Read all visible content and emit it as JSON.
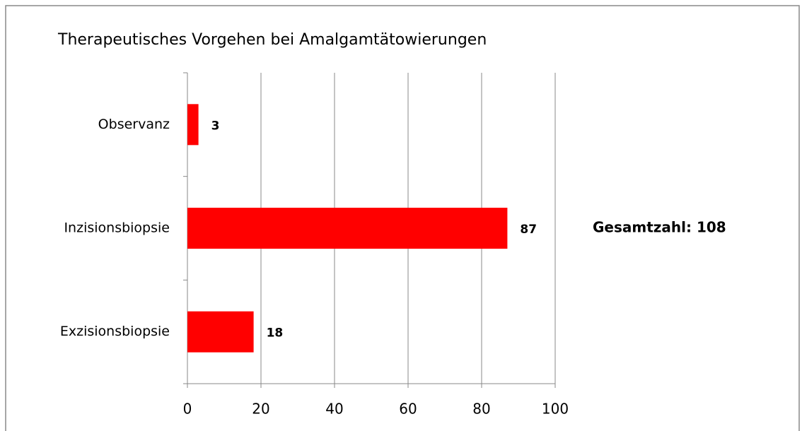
{
  "chart_data": {
    "type": "bar",
    "orientation": "horizontal",
    "title": "Therapeutisches Vorgehen bei Amalgamtätowierungen",
    "categories": [
      "Observanz",
      "Inzisionsbiopsie",
      "Exzisionsbiopsie"
    ],
    "values": [
      3,
      87,
      18
    ],
    "color": "#ff0000",
    "xlim": [
      0,
      100
    ],
    "xticks": [
      0,
      20,
      40,
      60,
      80,
      100
    ],
    "grid": true,
    "annotation": "Gesamtzahl: 108"
  }
}
